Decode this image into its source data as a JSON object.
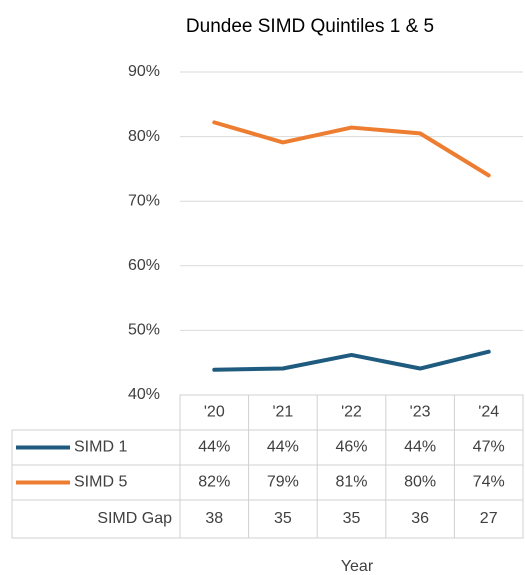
{
  "chart_data": {
    "type": "line",
    "title": "Dundee SIMD Quintiles 1 & 5",
    "x_label": "Year",
    "categories": [
      "'20",
      "'21",
      "'22",
      "'23",
      "'24"
    ],
    "series": [
      {
        "name": "SIMD 1",
        "color": "#1f5b7f",
        "values": [
          43.9,
          44.1,
          46.2,
          44.1,
          46.7
        ],
        "value_labels": [
          "44%",
          "44%",
          "46%",
          "44%",
          "47%"
        ]
      },
      {
        "name": "SIMD 5",
        "color": "#ed7d31",
        "values": [
          82.2,
          79.1,
          81.4,
          80.5,
          74.0
        ],
        "value_labels": [
          "82%",
          "79%",
          "81%",
          "80%",
          "74%"
        ]
      }
    ],
    "gap": {
      "name": "SIMD Gap",
      "values": [
        38,
        35,
        35,
        36,
        27
      ]
    },
    "ylim": [
      40,
      90
    ],
    "yticks": [
      {
        "value": 40,
        "label": "40%"
      },
      {
        "value": 50,
        "label": "50%"
      },
      {
        "value": 60,
        "label": "60%"
      },
      {
        "value": 70,
        "label": "70%"
      },
      {
        "value": 80,
        "label": "80%"
      },
      {
        "value": 90,
        "label": "90%"
      }
    ],
    "grid": true
  }
}
